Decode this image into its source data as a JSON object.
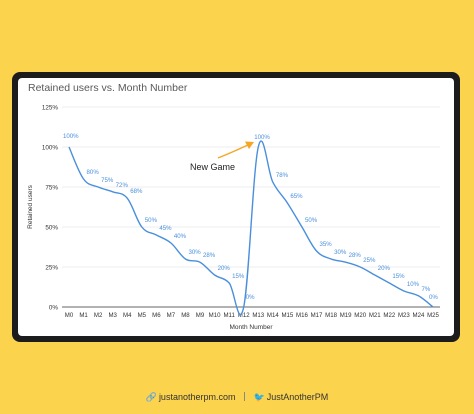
{
  "chart_data": {
    "type": "line",
    "title": "Retained users vs. Month Number",
    "xlabel": "Month Number",
    "ylabel": "Retained users",
    "categories": [
      "M0",
      "M1",
      "M2",
      "M3",
      "M4",
      "M5",
      "M6",
      "M7",
      "M8",
      "M9",
      "M10",
      "M11",
      "M12",
      "M13",
      "M14",
      "M15",
      "M16",
      "M17",
      "M18",
      "M19",
      "M20",
      "M21",
      "M22",
      "M23",
      "M24",
      "M25"
    ],
    "series": [
      {
        "values": [
          100,
          80,
          75,
          72,
          68,
          50,
          45,
          40,
          30,
          28,
          20,
          15,
          0,
          100,
          78,
          65,
          50,
          35,
          30,
          28,
          25,
          20,
          15,
          10,
          7,
          0
        ],
        "labels": [
          "100%",
          "80%",
          "75%",
          "72%",
          "68%",
          "50%",
          "45%",
          "40%",
          "30%",
          "28%",
          "20%",
          "15%",
          "0%",
          "100%",
          "78%",
          "65%",
          "50%",
          "35%",
          "30%",
          "28%",
          "25%",
          "20%",
          "15%",
          "10%",
          "7%",
          "0%"
        ],
        "color": "#4a8fdc"
      }
    ],
    "ylim": [
      0,
      125
    ],
    "yticks": [
      "0%",
      "25%",
      "50%",
      "75%",
      "100%",
      "125%"
    ],
    "grid": true,
    "annotation": {
      "text": "New Game",
      "arrow_color": "#f5a623"
    }
  },
  "footer": {
    "website": "justanotherpm.com",
    "twitter": "JustAnotherPM",
    "link_icon": "link-icon",
    "twitter_icon": "twitter-icon"
  }
}
